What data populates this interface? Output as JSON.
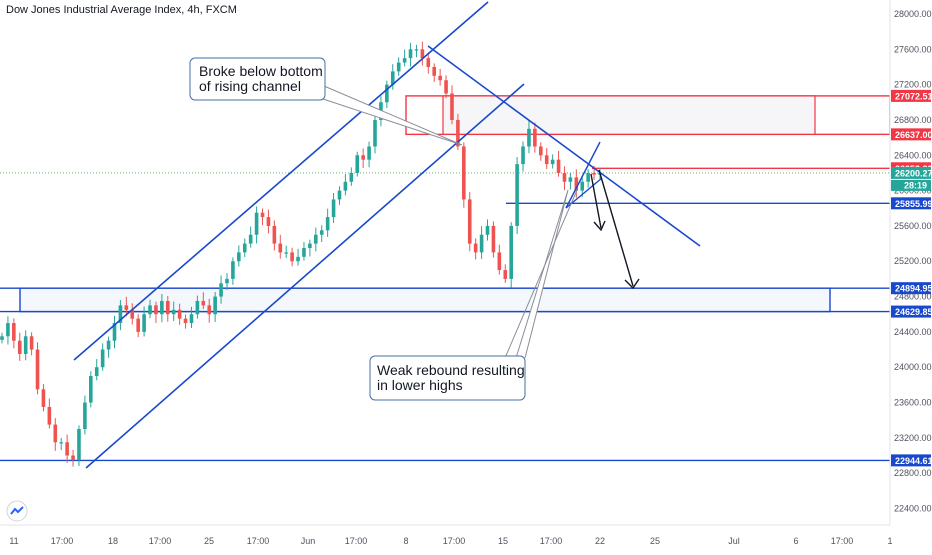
{
  "chart_data": {
    "type": "candlestick",
    "title": "Dow Jones Industrial Average Index, 4h, FXCM",
    "ylim": [
      22200,
      28150
    ],
    "grid": false,
    "x_tick_labels": [
      "11",
      "17:00",
      "18",
      "17:00",
      "25",
      "17:00",
      "Jun",
      "17:00",
      "8",
      "17:00",
      "15",
      "17:00",
      "22",
      "25",
      "Jul",
      "6",
      "17:00",
      "1"
    ],
    "y_tick_labels": [
      "28000.00",
      "27600.00",
      "27200.00",
      "26800.00",
      "26400.00",
      "26000.00",
      "25600.00",
      "25200.00",
      "24800.00",
      "24400.00",
      "24000.00",
      "23600.00",
      "23200.00",
      "22800.00",
      "22400.00"
    ],
    "y_tick_values": [
      28000,
      27600,
      27200,
      26800,
      26400,
      26000,
      25600,
      25200,
      24800,
      24400,
      24000,
      23600,
      23200,
      22800,
      22400
    ],
    "price_tags": [
      {
        "label": "27072.51",
        "value": 27072.51,
        "color": "#f23645"
      },
      {
        "label": "26637.00",
        "value": 26637.0,
        "color": "#f23645"
      },
      {
        "label": "26252.83",
        "value": 26252.83,
        "color": "#f23645"
      },
      {
        "label": "26200.27",
        "value": 26200.27,
        "color": "#26a69a"
      },
      {
        "label": "25855.99",
        "value": 25855.99,
        "color": "#1848cc"
      },
      {
        "label": "24894.95",
        "value": 24894.95,
        "color": "#1848cc"
      },
      {
        "label": "24629.85",
        "value": 24629.85,
        "color": "#1848cc"
      },
      {
        "label": "22944.61",
        "value": 22944.61,
        "color": "#1848cc"
      }
    ],
    "countdown_label": "28:19",
    "series": [
      {
        "values": [
          24350,
          24500,
          24300,
          24150,
          24350,
          24200,
          23750,
          23550,
          23350,
          23150,
          23150,
          23000,
          22950,
          23300,
          23600,
          23900,
          24000,
          24200,
          24300,
          24500,
          24700,
          24650,
          24550,
          24400,
          24600,
          24700,
          24600,
          24750,
          24600,
          24650,
          24550,
          24500,
          24600,
          24750,
          24700,
          24600,
          24800,
          24950,
          25000,
          25200,
          25300,
          25400,
          25500,
          25750,
          25700,
          25600,
          25400,
          25300,
          25300,
          25200,
          25250,
          25350,
          25400,
          25500,
          25550,
          25700,
          25900,
          26000,
          26100,
          26200,
          26400,
          26350,
          26500,
          26800,
          27000,
          27200,
          27350,
          27450,
          27500,
          27600,
          27600,
          27500,
          27400,
          27300,
          27250,
          27100,
          26800,
          26500,
          25900,
          25400,
          25300,
          25500,
          25600,
          25300,
          25100,
          25000,
          25600,
          26300,
          26500,
          26700,
          26500,
          26400,
          26300,
          26350,
          26200,
          26100,
          26150,
          26000,
          26100,
          26200,
          26180,
          26200
        ]
      }
    ],
    "callouts": [
      {
        "text": [
          "Broke below bottom",
          "of rising channel"
        ]
      },
      {
        "text": [
          "Weak rebound resulting",
          "in lower highs"
        ]
      }
    ]
  }
}
